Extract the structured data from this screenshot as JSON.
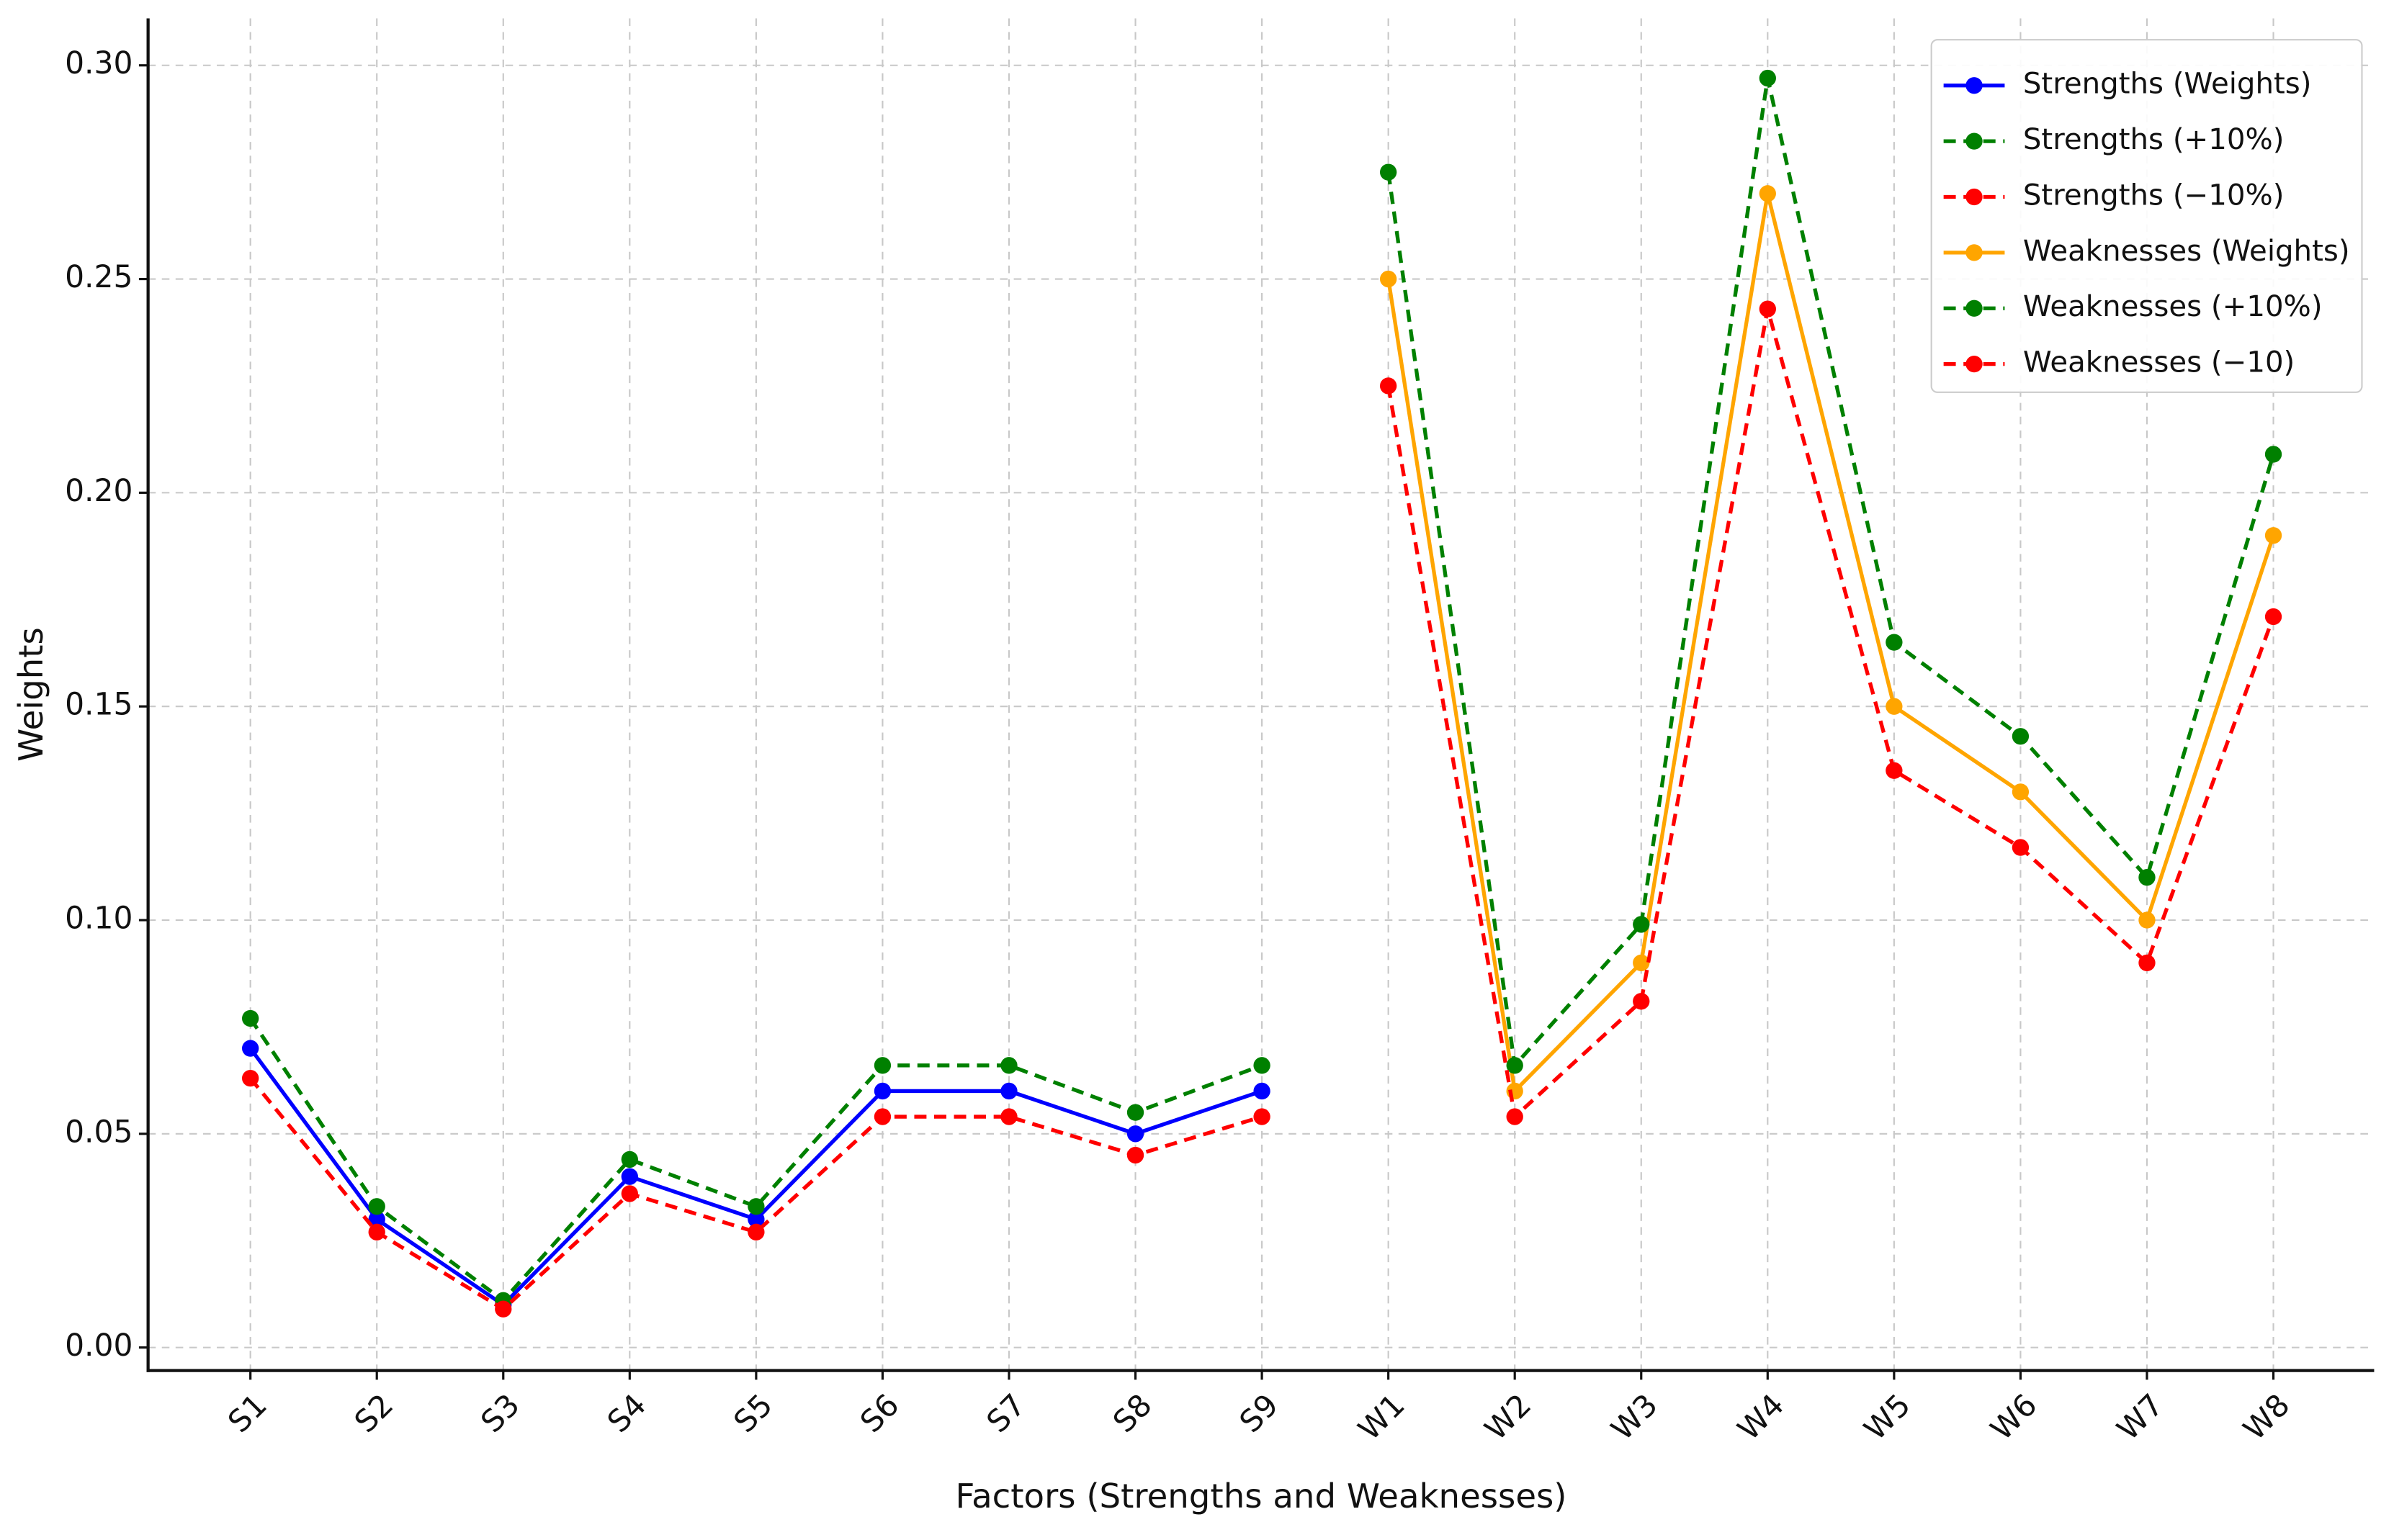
{
  "chart_data": {
    "type": "line",
    "x_label": "Factors (Strengths and Weaknesses)",
    "y_label": "Weights",
    "categories": [
      "S1",
      "S2",
      "S3",
      "S4",
      "S5",
      "S6",
      "S7",
      "S8",
      "S9",
      "W1",
      "W2",
      "W3",
      "W4",
      "W5",
      "W6",
      "W7",
      "W8"
    ],
    "ylim": [
      -0.0054,
      0.311
    ],
    "yticks": [
      {
        "value": 0,
        "label": "0.00"
      },
      {
        "value": 0.05,
        "label": "0.05"
      },
      {
        "value": 0.1,
        "label": "0.10"
      },
      {
        "value": 0.15,
        "label": "0.15"
      },
      {
        "value": 0.2,
        "label": "0.20"
      },
      {
        "value": 0.25,
        "label": "0.25"
      },
      {
        "value": 0.3,
        "label": "0.30"
      }
    ],
    "grid": true,
    "legend": "upper right",
    "series": [
      {
        "name": "Strengths (Weights)",
        "color": "#0000ff",
        "linestyle": "solid",
        "values": [
          0.07,
          0.03,
          0.01,
          0.04,
          0.03,
          0.06,
          0.06,
          0.05,
          0.06,
          null,
          null,
          null,
          null,
          null,
          null,
          null,
          null
        ]
      },
      {
        "name": "Strengths (+10%)",
        "color": "#008000",
        "linestyle": "dashed",
        "values": [
          0.077,
          0.033,
          0.011,
          0.044,
          0.033,
          0.066,
          0.066,
          0.055,
          0.066,
          null,
          null,
          null,
          null,
          null,
          null,
          null,
          null
        ]
      },
      {
        "name": "Strengths (−10%)",
        "color": "#ff0000",
        "linestyle": "dashed",
        "values": [
          0.063,
          0.027,
          0.009,
          0.036,
          0.027,
          0.054,
          0.054,
          0.045,
          0.054,
          null,
          null,
          null,
          null,
          null,
          null,
          null,
          null
        ]
      },
      {
        "name": "Weaknesses (Weights)",
        "color": "#ffa500",
        "linestyle": "solid",
        "values": [
          null,
          null,
          null,
          null,
          null,
          null,
          null,
          null,
          null,
          0.25,
          0.06,
          0.09,
          0.27,
          0.15,
          0.13,
          0.1,
          0.19
        ]
      },
      {
        "name": "Weaknesses (+10%)",
        "color": "#008000",
        "linestyle": "dashed",
        "values": [
          null,
          null,
          null,
          null,
          null,
          null,
          null,
          null,
          null,
          0.275,
          0.066,
          0.099,
          0.297,
          0.165,
          0.143,
          0.11,
          0.209
        ]
      },
      {
        "name": "Weaknesses (−10)",
        "color": "#ff0000",
        "linestyle": "dashed",
        "values": [
          null,
          null,
          null,
          null,
          null,
          null,
          null,
          null,
          null,
          0.225,
          0.054,
          0.081,
          0.243,
          0.135,
          0.117,
          0.09,
          0.171
        ]
      }
    ]
  }
}
